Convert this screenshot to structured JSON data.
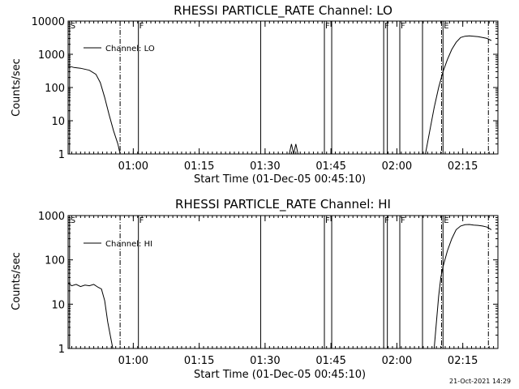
{
  "footer_timestamp": "21-Oct-2021 14:29",
  "chart_data": [
    {
      "type": "line",
      "title": "RHESSI PARTICLE_RATE Channel: LO",
      "xlabel": "Start Time (01-Dec-05 00:45:10)",
      "ylabel": "Counts/sec",
      "y_scale": "log",
      "xlim": [
        "00:45:10",
        "02:23:00"
      ],
      "ylim": [
        1,
        10000
      ],
      "x_ticks": [
        "01:00",
        "01:15",
        "01:30",
        "01:45",
        "02:00",
        "02:15"
      ],
      "y_ticks": [
        "1",
        "10",
        "100",
        "1000",
        "10000"
      ],
      "legend": "top-left",
      "series": [
        {
          "name": "Channel: LO",
          "segments": [
            {
              "x": [
                "00:45:10",
                "00:46:30",
                "00:48:00",
                "00:50:00",
                "00:51:30",
                "00:52:30",
                "00:53:30",
                "00:54:30",
                "00:55:30",
                "00:56:30",
                "00:57:00"
              ],
              "y": [
                450,
                400,
                380,
                330,
                250,
                140,
                50,
                15,
                5,
                2,
                1
              ]
            },
            {
              "x": [
                "01:35:30",
                "01:36:00",
                "01:36:30",
                "01:37:00",
                "01:37:30"
              ],
              "y": [
                1,
                2,
                1,
                2,
                1
              ]
            },
            {
              "x": [
                "02:06:30",
                "02:07:30",
                "02:08:30",
                "02:09:30",
                "02:10:30",
                "02:11:30",
                "02:12:30",
                "02:13:30",
                "02:14:30",
                "02:15:30",
                "02:16:30",
                "02:17:30",
                "02:18:30",
                "02:19:30",
                "02:20:30",
                "02:21:30"
              ],
              "y": [
                1,
                5,
                25,
                100,
                300,
                700,
                1400,
                2300,
                3200,
                3500,
                3600,
                3500,
                3400,
                3200,
                3000,
                2600
              ]
            }
          ]
        }
      ],
      "markers": [
        {
          "label": "S",
          "times": [
            "00:45:30"
          ],
          "style": "solid"
        },
        {
          "label": "",
          "times": [
            "00:57:00",
            "02:10:10",
            "02:20:50"
          ],
          "style": "dashdot"
        },
        {
          "label": "F",
          "times": [
            "01:01:10",
            "01:43:30",
            "01:57:00",
            "02:00:40"
          ],
          "style": "solid"
        },
        {
          "label": "",
          "times": [
            "01:29:00",
            "01:45:10",
            "01:57:50",
            "02:05:50"
          ],
          "style": "solid"
        },
        {
          "label": "E",
          "times": [
            "02:10:30"
          ],
          "style": "solid"
        }
      ]
    },
    {
      "type": "line",
      "title": "RHESSI PARTICLE_RATE Channel: HI",
      "xlabel": "Start Time (01-Dec-05 00:45:10)",
      "ylabel": "Counts/sec",
      "y_scale": "log",
      "xlim": [
        "00:45:10",
        "02:23:00"
      ],
      "ylim": [
        1,
        1000
      ],
      "x_ticks": [
        "01:00",
        "01:15",
        "01:30",
        "01:45",
        "02:00",
        "02:15"
      ],
      "y_ticks": [
        "1",
        "10",
        "100",
        "1000"
      ],
      "legend": "top-left",
      "series": [
        {
          "name": "Channel: HI",
          "segments": [
            {
              "x": [
                "00:45:10",
                "00:46:00",
                "00:47:00",
                "00:48:00",
                "00:49:00",
                "00:50:00",
                "00:51:00",
                "00:52:00",
                "00:52:45",
                "00:53:30",
                "00:54:10",
                "00:54:50",
                "00:55:20"
              ],
              "y": [
                30,
                26,
                28,
                25,
                27,
                26,
                28,
                24,
                22,
                12,
                4,
                1.8,
                1
              ]
            },
            {
              "x": [
                "02:08:30",
                "02:09:00",
                "02:09:30",
                "02:10:00",
                "02:10:30",
                "02:11:30",
                "02:12:30",
                "02:13:30",
                "02:14:30",
                "02:15:30",
                "02:16:30",
                "02:17:30",
                "02:18:30",
                "02:19:30",
                "02:20:30",
                "02:21:30"
              ],
              "y": [
                1,
                4,
                15,
                40,
                70,
                160,
                300,
                480,
                580,
                620,
                630,
                610,
                600,
                580,
                550,
                480
              ]
            }
          ]
        }
      ],
      "markers": [
        {
          "label": "S",
          "times": [
            "00:45:30"
          ],
          "style": "solid"
        },
        {
          "label": "",
          "times": [
            "00:57:00",
            "02:10:10",
            "02:20:50"
          ],
          "style": "dashdot"
        },
        {
          "label": "F",
          "times": [
            "01:01:10",
            "01:43:30",
            "01:57:00",
            "02:00:40"
          ],
          "style": "solid"
        },
        {
          "label": "",
          "times": [
            "01:29:00",
            "01:45:10",
            "01:57:50",
            "02:05:50"
          ],
          "style": "solid"
        },
        {
          "label": "E",
          "times": [
            "02:10:30"
          ],
          "style": "solid"
        }
      ]
    }
  ]
}
